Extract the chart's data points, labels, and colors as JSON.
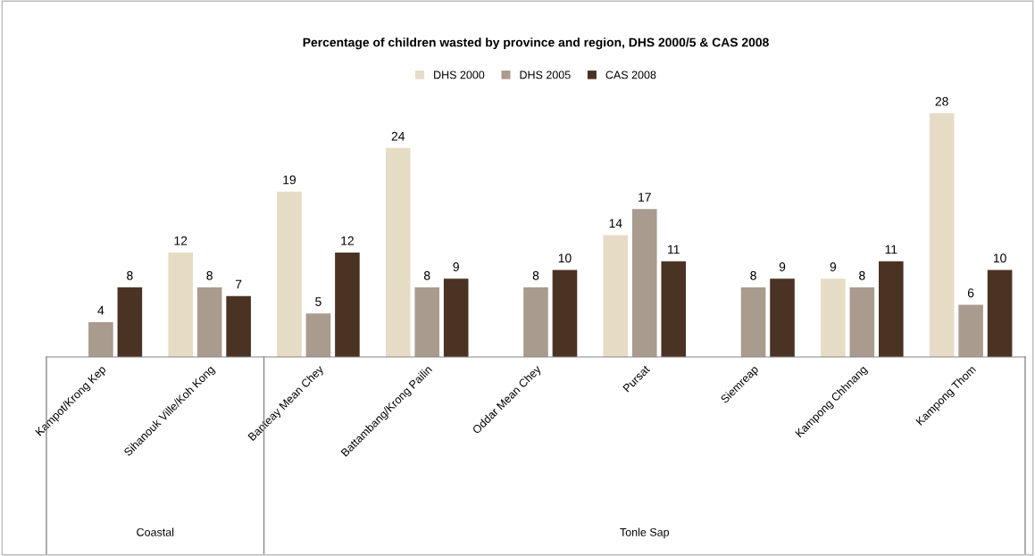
{
  "chart_data": {
    "type": "bar",
    "title": "Percentage of children wasted by province and region, DHS 2000/5 & CAS 2008",
    "categories": [
      "Kampot/Krong Kep",
      "Sihanouk Ville/Koh Kong",
      "Banteay Mean Chey",
      "Battambang/Krong Pailin",
      "Oddar Mean Chey",
      "Pursat",
      "Siemreap",
      "Kampong Chhnang",
      "Kampong Thom"
    ],
    "series": [
      {
        "name": "DHS 2000",
        "color": "#e6dcc6",
        "values": [
          null,
          12,
          19,
          24,
          null,
          14,
          null,
          9,
          28
        ]
      },
      {
        "name": "DHS 2005",
        "color": "#a99b8d",
        "values": [
          4,
          8,
          5,
          8,
          8,
          17,
          8,
          8,
          6
        ]
      },
      {
        "name": "CAS 2008",
        "color": "#4b3323",
        "values": [
          8,
          7,
          12,
          9,
          10,
          11,
          9,
          11,
          10
        ]
      }
    ],
    "data_labels": true,
    "legend": "top",
    "grid": false,
    "annotations": [
      "Coastal",
      "Tonle Sap"
    ]
  }
}
